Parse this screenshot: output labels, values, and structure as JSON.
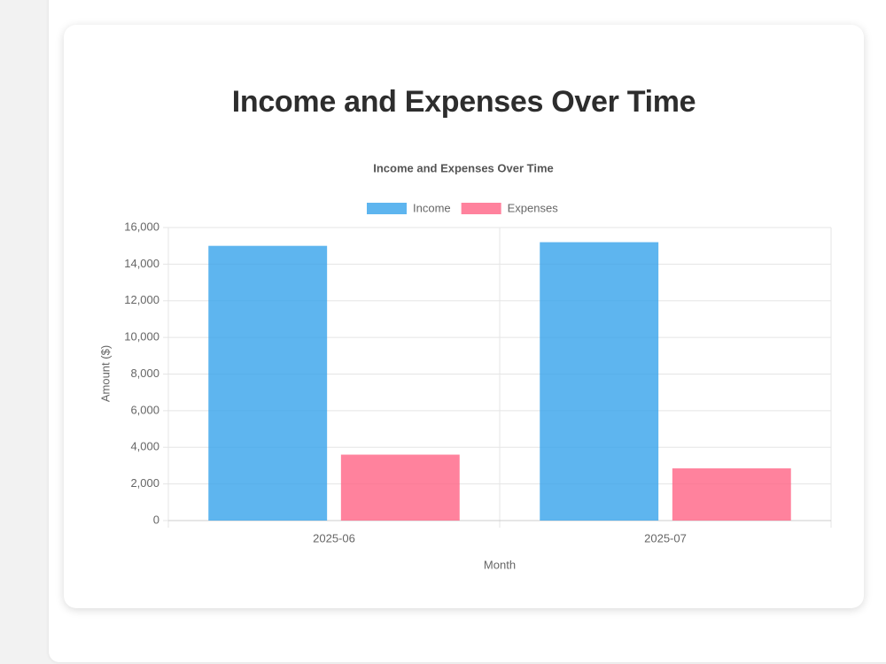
{
  "page_title": "Income and Expenses Over Time",
  "chart_data": {
    "type": "bar",
    "title": "Income and Expenses Over Time",
    "categories": [
      "2025-06",
      "2025-07"
    ],
    "series": [
      {
        "name": "Income",
        "color": "rgba(54,162,235,0.8)",
        "values": [
          15000,
          15200
        ]
      },
      {
        "name": "Expenses",
        "color": "rgba(255,99,132,0.8)",
        "values": [
          3600,
          2850
        ]
      }
    ],
    "x_label": "Month",
    "y_label": "Amount ($)",
    "ylim": [
      0,
      16000
    ],
    "yticks": [
      0,
      {
        "value": 2000,
        "label": "2,000"
      },
      {
        "value": 4000,
        "label": "4,000"
      },
      {
        "value": 6000,
        "label": "6,000"
      },
      {
        "value": 8000,
        "label": "8,000"
      },
      {
        "value": 10000,
        "label": "10,000"
      },
      {
        "value": 12000,
        "label": "12,000"
      },
      {
        "value": 14000,
        "label": "14,000"
      },
      {
        "value": 16000,
        "label": "16,000"
      }
    ],
    "grid": true,
    "legend": "top"
  }
}
